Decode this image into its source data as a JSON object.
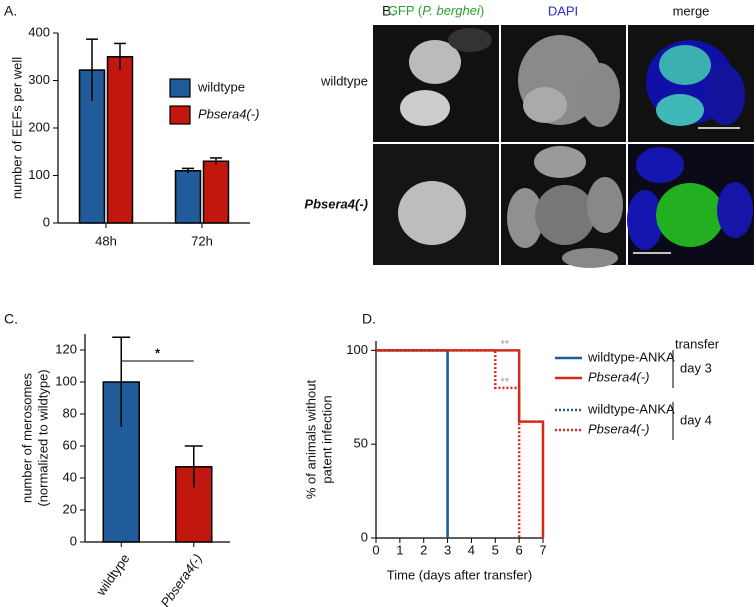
{
  "panel_labels": [
    "A.",
    "B.",
    "C.",
    "D."
  ],
  "image_panel": {
    "columns": [
      {
        "prefix": "GFP (",
        "species": "P. berghei",
        "suffix": ")"
      },
      "DAPI",
      "merge"
    ],
    "rows": [
      "wildtype",
      "Pbsera4(-)"
    ]
  },
  "chart_data": [
    {
      "type": "bar",
      "ylabel": "number of EEFs per well",
      "categories": [
        "48h",
        "72h"
      ],
      "series": [
        {
          "name": "wildtype",
          "color": "#1f5c99",
          "values": [
            322,
            110
          ],
          "errors": [
            65,
            5
          ]
        },
        {
          "name": "Pbsera4(-)",
          "color": "#c1170f",
          "values": [
            350,
            130
          ],
          "errors": [
            28,
            7
          ]
        }
      ],
      "ylim": [
        0,
        400
      ],
      "yticks": [
        0,
        100,
        200,
        300,
        400
      ]
    },
    {
      "type": "bar",
      "ylabel": [
        "number of merosomes",
        "(normalized to wildtype)"
      ],
      "categories": [
        "wildtype",
        "Pbsera4(-)"
      ],
      "values": [
        100,
        47
      ],
      "errors": [
        28,
        13
      ],
      "colors": [
        "#1f5c99",
        "#c1170f"
      ],
      "significance": "*",
      "ylim": [
        0,
        130
      ],
      "yticks": [
        0,
        20,
        40,
        60,
        80,
        100,
        120
      ]
    },
    {
      "type": "line",
      "step": true,
      "xlabel": "Time (days after transfer)",
      "ylabel": [
        "% of animals without",
        "patent infection"
      ],
      "series": [
        {
          "name": "wildtype-ANKA",
          "color": "#1f5c99",
          "dash": "solid",
          "x": [
            0,
            3
          ],
          "values": [
            100,
            0
          ]
        },
        {
          "name": "Pbsera4(-)",
          "color": "#d42a1c",
          "dash": "solid",
          "x": [
            0,
            6,
            7
          ],
          "values": [
            100,
            62,
            0
          ]
        },
        {
          "name": "wildtype-ANKA",
          "color": "#1f5c99",
          "dash": "dotted",
          "x": [
            0,
            3
          ],
          "values": [
            100,
            0
          ]
        },
        {
          "name": "Pbsera4(-)",
          "color": "#d42a1c",
          "dash": "dotted",
          "x": [
            0,
            5,
            6
          ],
          "values": [
            100,
            80,
            0
          ]
        }
      ],
      "legend_title": "transfer",
      "legend_groups": [
        "day 3",
        "day 4"
      ],
      "annotations": [
        "**",
        "**"
      ],
      "xlim": [
        0,
        7
      ],
      "xticks": [
        0,
        1,
        2,
        3,
        4,
        5,
        6,
        7
      ],
      "ylim": [
        0,
        105
      ],
      "yticks": [
        0,
        50,
        100
      ]
    }
  ]
}
